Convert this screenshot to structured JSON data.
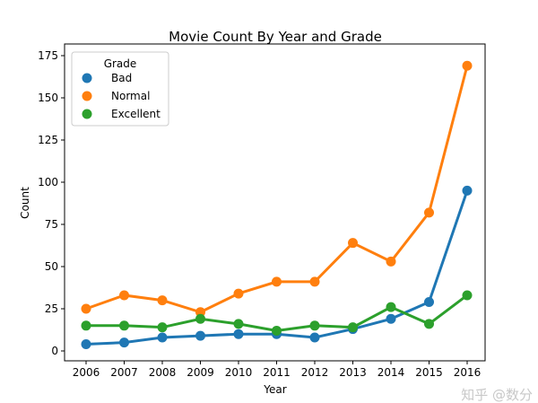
{
  "chart_data": {
    "type": "line",
    "title": "Movie Count By Year and Grade",
    "xlabel": "Year",
    "ylabel": "Count",
    "categories": [
      "2006",
      "2007",
      "2008",
      "2009",
      "2010",
      "2011",
      "2012",
      "2013",
      "2014",
      "2015",
      "2016"
    ],
    "ylim": [
      -7,
      177
    ],
    "yticks": [
      0,
      25,
      50,
      75,
      100,
      125,
      150,
      175
    ],
    "grid": false,
    "legend": {
      "title": "Grade",
      "placement": "top-left"
    },
    "series": [
      {
        "name": "Bad",
        "color": "#1f77b4",
        "values": [
          4,
          5,
          8,
          9,
          10,
          10,
          8,
          13,
          19,
          29,
          95
        ]
      },
      {
        "name": "Normal",
        "color": "#ff7f0e",
        "values": [
          25,
          33,
          30,
          23,
          34,
          41,
          41,
          64,
          53,
          82,
          169
        ]
      },
      {
        "name": "Excellent",
        "color": "#2ca02c",
        "values": [
          15,
          15,
          14,
          19,
          16,
          12,
          15,
          14,
          26,
          16,
          33
        ]
      }
    ]
  },
  "watermark": "知乎 @数分"
}
